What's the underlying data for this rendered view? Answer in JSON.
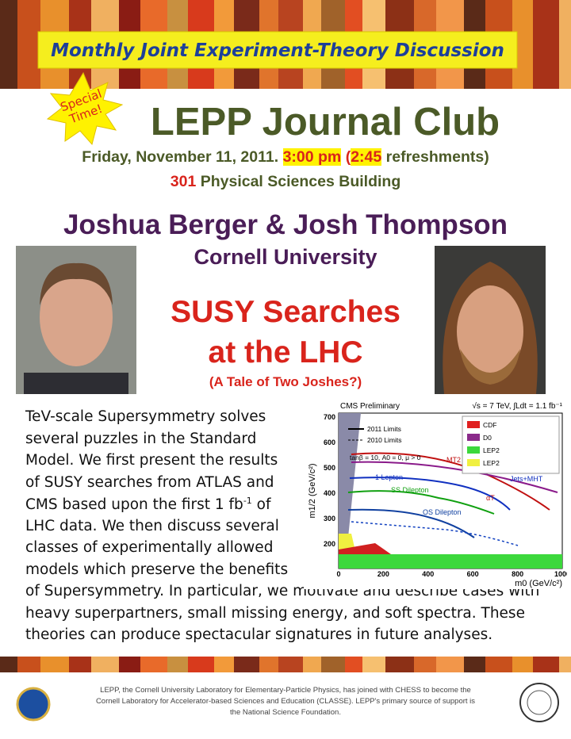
{
  "banner": "Monthly Joint Experiment-Theory Discussion",
  "badge": [
    "Special",
    "Time!"
  ],
  "title": "LEPP Journal  Club",
  "date": {
    "prefix": "Friday, November 11, 2011.",
    "time": "3:00 pm",
    "open": "(",
    "refresh_time": "2:45",
    "suffix": "refreshments)"
  },
  "location": {
    "room": "301",
    "building": "Physical Sciences Building"
  },
  "speakers": "Joshua Berger & Josh Thompson",
  "affiliation": "Cornell University",
  "talk": {
    "title": [
      "SUSY Searches",
      "at the LHC"
    ],
    "subtitle": "(A Tale of Two Joshes?)"
  },
  "abstract": {
    "lines": [
      "TeV-scale Supersymmetry solves",
      "several puzzles in the Standard",
      "Model. We first present the results",
      "of SUSY searches from ATLAS and"
    ],
    "sup_line": {
      "before": "CMS based upon the first 1 fb",
      "sup": "-1",
      "after": " of"
    },
    "lines2": [
      "LHC data.  We then discuss several",
      "classes of experimentally allowed",
      "models which preserve the benefits",
      "of Supersymmetry.  In particular, we motivate and describe cases with",
      "heavy superpartners, small missing energy, and soft spectra.  These",
      "theories can produce spectacular signatures in future analyses."
    ]
  },
  "figure": {
    "header": "CMS Preliminary",
    "energy": "√s = 7 TeV, ∫Ldt = 1.1 fb⁻¹",
    "y_label": "m1/2 (GeV/c²)",
    "x_label": "m0 (GeV/c²)",
    "y_ticks": [
      "200",
      "300",
      "400",
      "500",
      "600",
      "700"
    ],
    "x_ticks": [
      "0",
      "200",
      "400",
      "600",
      "800",
      "1000"
    ],
    "legend": [
      "2011 Limits",
      "2010 Limits",
      "tanβ = 10, A0 = 0, μ > 0"
    ],
    "legend_right": [
      "CDF",
      "D0",
      "LEP2",
      "LEP2"
    ],
    "curves": [
      "MT2",
      "1 Lepton",
      "SS Dilepton",
      "OS Dilepton",
      "Jets+MHT",
      "αT"
    ]
  },
  "footer": [
    "LEPP, the Cornell University Laboratory for Elementary-Particle Physics, has joined with CHESS to become the",
    "Cornell Laboratory for Accelerator-based Sciences and Education (CLASSE). LEPP's primary source of support is",
    "the National Science Foundation."
  ]
}
